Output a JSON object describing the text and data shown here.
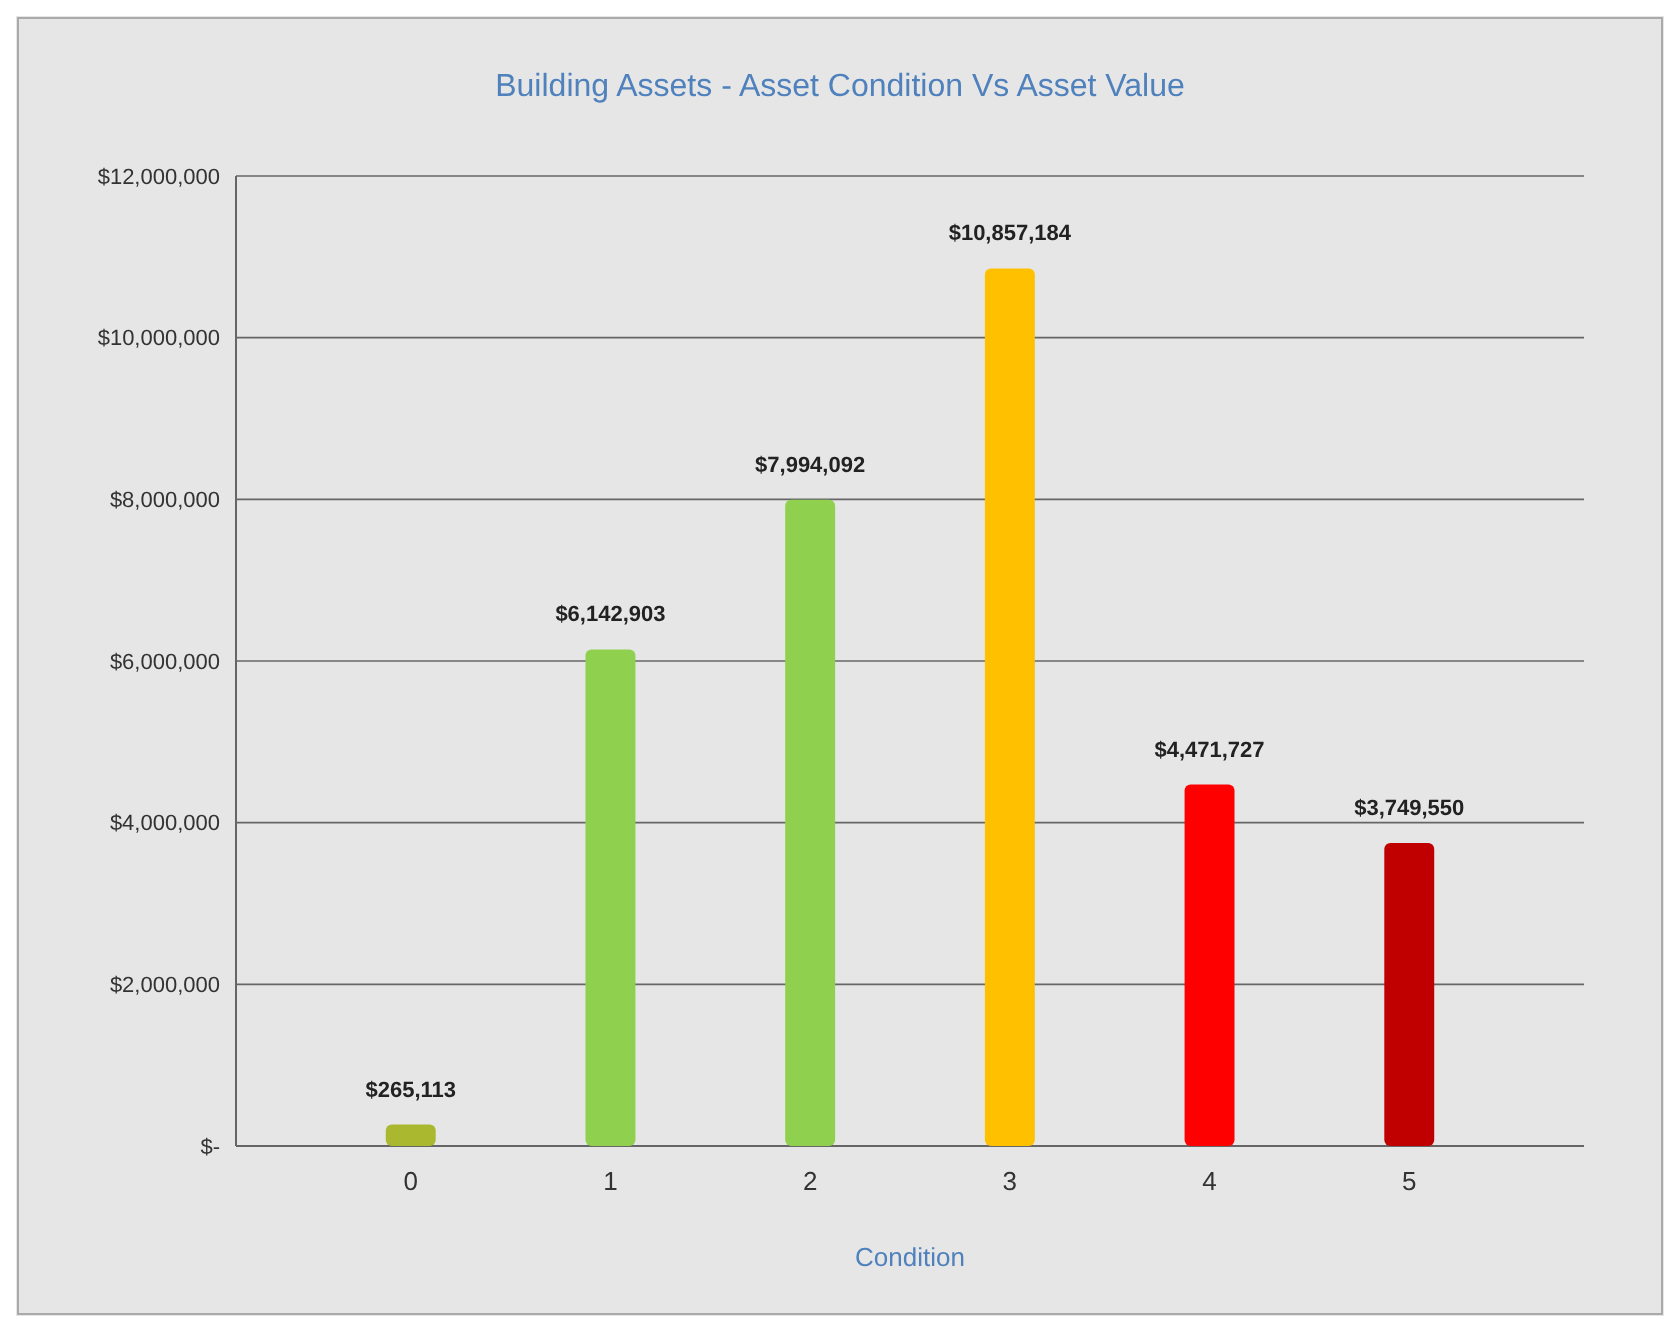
{
  "chart_data": {
    "type": "bar",
    "title": "Building Assets - Asset Condition Vs Asset Value",
    "xlabel": "Condition",
    "categories": [
      "0",
      "1",
      "2",
      "3",
      "4",
      "5"
    ],
    "values": [
      265113,
      6142903,
      7994092,
      10857184,
      4471727,
      3749550
    ],
    "colors": [
      "#a9b82e",
      "#8fd14f",
      "#8fd14f",
      "#ffc000",
      "#ff0000",
      "#c00000"
    ],
    "value_labels": [
      "$265,113",
      "$6,142,903",
      "$7,994,092",
      "$10,857,184",
      "$4,471,727",
      "$3,749,550"
    ],
    "ylim": [
      0,
      12000000
    ],
    "yticks": [
      {
        "value": 0,
        "label": "$-"
      },
      {
        "value": 2000000,
        "label": "$2,000,000"
      },
      {
        "value": 4000000,
        "label": "$4,000,000"
      },
      {
        "value": 6000000,
        "label": "$6,000,000"
      },
      {
        "value": 8000000,
        "label": "$8,000,000"
      },
      {
        "value": 10000000,
        "label": "$10,000,000"
      },
      {
        "value": 12000000,
        "label": "$12,000,000"
      }
    ],
    "grid": "y"
  }
}
